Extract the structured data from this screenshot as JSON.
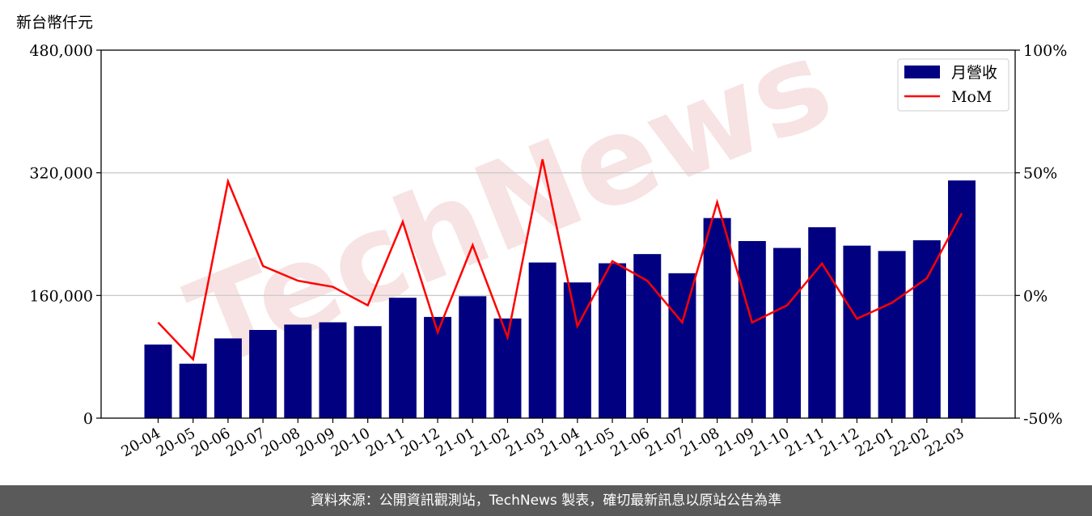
{
  "chart_data": {
    "type": "bar",
    "unit_label": "新台幣仟元",
    "categories": [
      "20-04",
      "20-05",
      "20-06",
      "20-07",
      "20-08",
      "20-09",
      "20-10",
      "20-11",
      "20-12",
      "21-01",
      "21-02",
      "21-03",
      "21-04",
      "21-05",
      "21-06",
      "21-07",
      "21-08",
      "21-09",
      "21-10",
      "21-11",
      "21-12",
      "22-01",
      "22-02",
      "22-03"
    ],
    "series": [
      {
        "name": "月營收",
        "kind": "bar",
        "axis": "left",
        "color": "#000080",
        "values": [
          96000,
          71000,
          104000,
          115000,
          122000,
          125000,
          120000,
          157000,
          132000,
          159000,
          130000,
          203000,
          177000,
          202000,
          214000,
          189000,
          261000,
          231000,
          222000,
          249000,
          225000,
          218000,
          232000,
          310000
        ]
      },
      {
        "name": "MoM",
        "kind": "line",
        "axis": "right",
        "color": "#ff0000",
        "values": [
          -11,
          -26,
          46.5,
          12,
          6,
          3.5,
          -4,
          30,
          -15,
          20.5,
          -17,
          55.5,
          -12.5,
          14,
          6,
          -11,
          38,
          -11,
          -4,
          13,
          -9.5,
          -3,
          7,
          33.5
        ]
      }
    ],
    "y_left": {
      "min": 0,
      "max": 480000,
      "ticks": [
        "0",
        "160,000",
        "320,000",
        "480,000"
      ],
      "tick_values": [
        0,
        160000,
        320000,
        480000
      ]
    },
    "y_right": {
      "min": -50,
      "max": 100,
      "ticks": [
        "-50%",
        "0%",
        "50%",
        "100%"
      ],
      "tick_values": [
        -50,
        0,
        50,
        100
      ]
    },
    "grid": "horizontal",
    "legend_position": "top-right",
    "watermark": "TechNews"
  },
  "footer": {
    "text": "資料來源：公開資訊觀測站，TechNews 製表，確切最新訊息以原站公告為準"
  }
}
